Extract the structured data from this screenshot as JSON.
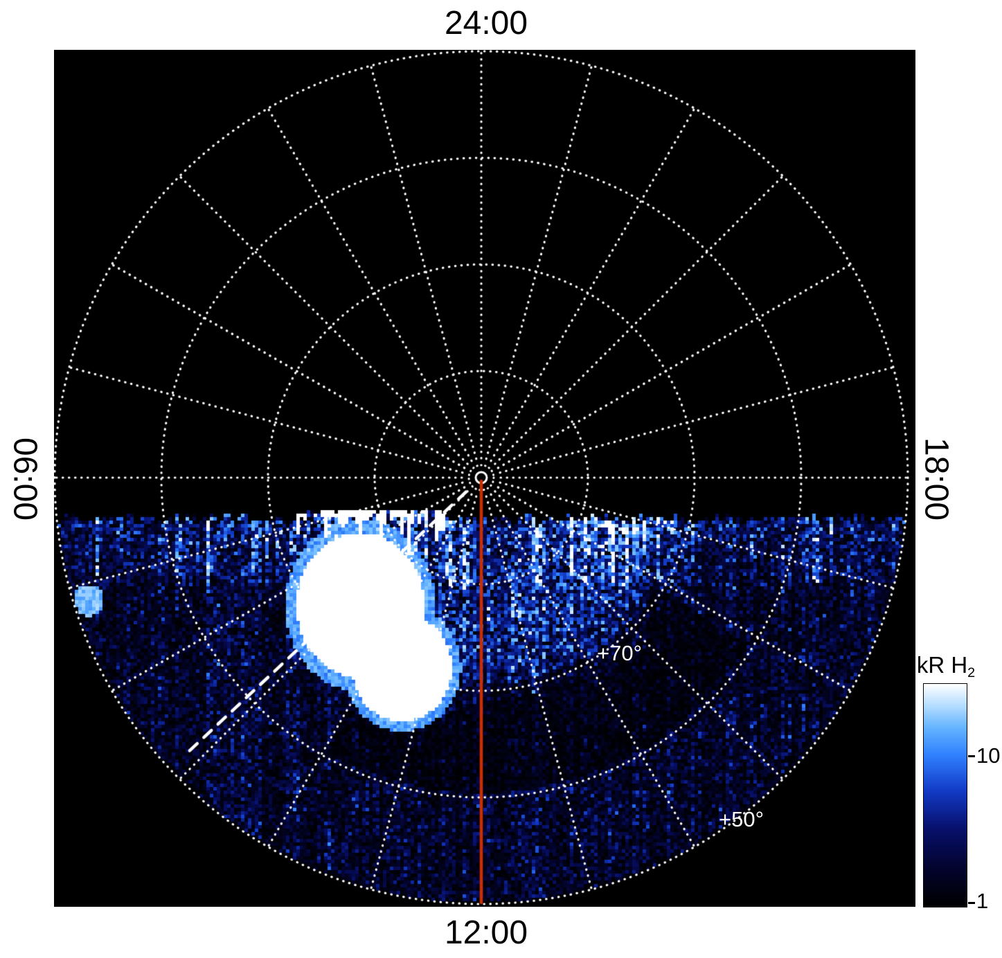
{
  "figure": {
    "bg_color": "#ffffff",
    "plot_bg_color": "#000000",
    "grid_color": "#ffffff",
    "noon_meridian_color": "#cc2e00",
    "axis_labels": {
      "top": "24:00",
      "bottom": "12:00",
      "left": "06:00",
      "right": "18:00"
    },
    "lat_labels": {
      "l70": "+70°",
      "l50": "+50°"
    },
    "colorbar": {
      "title_main": "kR H",
      "title_sub": "2",
      "tick_labels": [
        "10",
        "1"
      ],
      "scale": "log",
      "value_min": 1,
      "value_max": 30
    }
  },
  "chart_data": {
    "type": "heatmap",
    "projection": "polar",
    "quantity": "H2 auroral emission brightness",
    "units": "kR",
    "color_scale": {
      "label": "kR H2",
      "type": "log",
      "min": 1,
      "max": 30,
      "tick_values": [
        10,
        1
      ],
      "colormap_stops": [
        "#000000",
        "#030430",
        "#07106c",
        "#123ac6",
        "#3080ff",
        "#62b2ff",
        "#b2dcff",
        "#ffffff"
      ]
    },
    "angular_axis": {
      "coordinate": "local time",
      "labels_shown": [
        "24:00",
        "06:00",
        "12:00",
        "18:00"
      ],
      "label_positions": [
        "top",
        "left",
        "bottom",
        "right"
      ],
      "spoke_interval_hours": 1
    },
    "radial_axis": {
      "coordinate": "latitude",
      "center_deg": 90,
      "edge_deg": 50,
      "circle_interval_deg": 10,
      "labeled_circles": [
        "+70°",
        "+50°"
      ]
    },
    "overlays": [
      {
        "name": "noon meridian",
        "description": "solid red-orange line from pole to 12:00 on the outer circle",
        "color": "#cc2e00",
        "style": "solid"
      },
      {
        "name": "dawn-side dashed meridian",
        "description": "white dashed line from near the pole toward the lower left (~07:40 local time)",
        "color": "#ffffff",
        "style": "dashed"
      }
    ],
    "regions": [
      {
        "name": "nightside no-data",
        "local_time": "18:00 through 24:00 to 06:00",
        "description": "upper half solid black, dotted grid only"
      },
      {
        "name": "dayside diffuse emission",
        "local_time": "06:00-18:00",
        "latitude_deg": [
          50,
          88
        ],
        "brightness_kr": "1-10, speckled blue columns"
      },
      {
        "name": "saturated bright patch",
        "local_time": "~09:00-10:30",
        "latitude_deg": [
          63,
          78
        ],
        "brightness_kr": ">30 (saturated white blob with white spike columns above)"
      },
      {
        "name": "auroral arc",
        "local_time": "~10:00-16:00",
        "latitude_deg": [
          70,
          80
        ],
        "brightness_kr": "10-30 (bright blue arc)"
      },
      {
        "name": "dark lane below arc",
        "local_time": "~11:00-15:00",
        "latitude_deg": [
          60,
          70
        ],
        "brightness_kr": "<2 (near black)"
      }
    ]
  }
}
